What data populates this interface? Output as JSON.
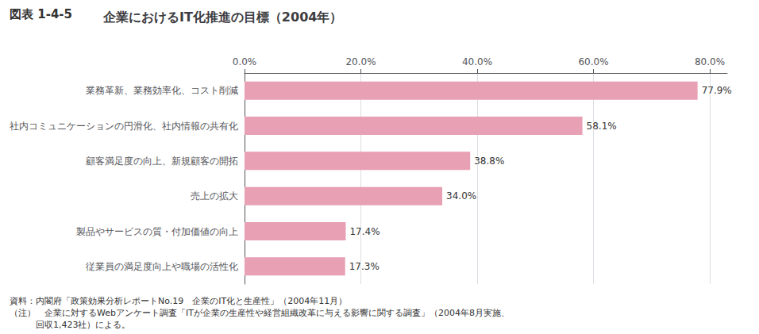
{
  "chart_data": {
    "type": "bar",
    "orientation": "horizontal",
    "title": "企業におけるIT化推進の目標（2004年）",
    "annotations": [
      "図表 1-4-5",
      "資料：内閣府「政策効果分析レポートNo.19　企業のIT化と生産性」（2004年11月）",
      "（注）　企業に対するWebアンケート調査「ITが企業の生産性や経営組織改革に与える影響に関する調査」（2004年8月実施、",
      "　　　回収1,423社）による。"
    ],
    "categories": [
      "業務革新、業務効率化、コスト削減",
      "社内コミュニケーションの円滑化、社内情報の共有化",
      "顧客満足度の向上、新規顧客の開拓",
      "売上の拡大",
      "製品やサービスの質・付加価値の向上",
      "従業員の満足度向上や職場の活性化"
    ],
    "values": [
      77.9,
      58.1,
      38.8,
      34.0,
      17.4,
      17.3
    ],
    "value_labels": [
      "77.9%",
      "58.1%",
      "38.8%",
      "34.0%",
      "17.4%",
      "17.3%"
    ],
    "data_labels": true,
    "color": "#e8a0b4",
    "xlim": [
      0,
      83
    ],
    "xticks": [
      {
        "value": 0,
        "label": "0.0%"
      },
      {
        "value": 20,
        "label": "20.0%"
      },
      {
        "value": 40,
        "label": "40.0%"
      },
      {
        "value": 60,
        "label": "60.0%"
      },
      {
        "value": 80,
        "label": "80.0%"
      }
    ],
    "grid": true
  }
}
